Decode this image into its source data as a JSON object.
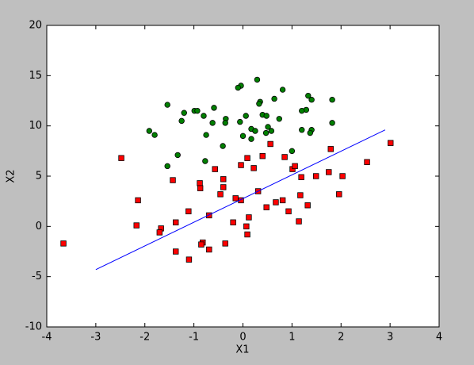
{
  "chart_data": {
    "type": "scatter",
    "xlabel": "X1",
    "ylabel": "X2",
    "xlim": [
      -4,
      4
    ],
    "ylim": [
      -10,
      20
    ],
    "xticks": [
      -4,
      -3,
      -2,
      -1,
      0,
      1,
      2,
      3,
      4
    ],
    "yticks": [
      -10,
      -5,
      0,
      5,
      10,
      15,
      20
    ],
    "series": [
      {
        "marker": "circle",
        "color": "#008000",
        "x": [
          0.29,
          -0.04,
          -0.1,
          0.81,
          1.33,
          1.82,
          1.4,
          0.64,
          0.35,
          0.33,
          -1.54,
          -0.59,
          1.29,
          1.2,
          -0.99,
          -0.93,
          -1.2,
          0.4,
          0.48,
          0.06,
          -0.8,
          -0.35,
          0.74,
          -1.25,
          -0.06,
          -0.36,
          -0.62,
          1.82,
          0.51,
          0.17,
          0.25,
          -1.91,
          1.4,
          1.2,
          1.37,
          0.58,
          0.47,
          -1.8,
          0,
          -0.75,
          0.17,
          -0.41,
          1.0,
          -1.33,
          -0.77,
          -1.54
        ],
        "values": [
          14.6,
          14.0,
          13.8,
          13.6,
          13.0,
          12.6,
          12.6,
          12.7,
          12.4,
          12.2,
          12.1,
          11.8,
          11.6,
          11.5,
          11.5,
          11.5,
          11.3,
          11.1,
          11.0,
          11.0,
          11.0,
          10.7,
          10.7,
          10.5,
          10.4,
          10.3,
          10.3,
          10.3,
          9.9,
          9.7,
          9.5,
          9.5,
          9.6,
          9.6,
          9.3,
          9.5,
          9.3,
          9.1,
          9.0,
          9.1,
          8.7,
          8.0,
          7.5,
          7.1,
          6.5,
          6.0
        ]
      },
      {
        "marker": "square",
        "color": "#ff0000",
        "x": [
          -3.66,
          -2.48,
          -2.14,
          -2.17,
          -1.67,
          -1.7,
          -1.43,
          -1.37,
          -1.37,
          -1.11,
          -1.1,
          -0.88,
          -0.87,
          -0.82,
          -0.85,
          -0.69,
          -0.69,
          -0.57,
          -0.46,
          -0.4,
          -0.4,
          -0.36,
          -0.2,
          -0.15,
          -0.04,
          -0.04,
          0.09,
          0.07,
          0.09,
          0.12,
          0.22,
          0.31,
          0.4,
          0.48,
          0.56,
          0.67,
          0.81,
          0.85,
          0.93,
          1.01,
          1.06,
          1.14,
          1.17,
          1.19,
          1.32,
          1.49,
          1.75,
          1.79,
          1.96,
          2.03,
          2.53,
          3.01
        ],
        "values": [
          -1.7,
          6.8,
          2.6,
          0.1,
          -0.2,
          -0.6,
          4.6,
          0.4,
          -2.5,
          1.5,
          -3.3,
          4.3,
          3.8,
          -1.6,
          -1.8,
          1.1,
          -2.3,
          5.7,
          3.2,
          4.7,
          3.9,
          -1.7,
          0.4,
          2.8,
          6.1,
          2.6,
          6.8,
          0,
          -0.8,
          0.9,
          5.8,
          3.5,
          7.0,
          1.9,
          8.2,
          2.4,
          2.6,
          6.9,
          1.5,
          5.7,
          6.0,
          0.5,
          3.1,
          4.9,
          2.1,
          5.0,
          5.4,
          7.7,
          3.2,
          5.0,
          6.4,
          8.3
        ]
      },
      {
        "marker": "line",
        "color": "#0000ff",
        "x": [
          -3.0,
          2.9
        ],
        "values": [
          -4.3,
          9.6
        ]
      }
    ]
  }
}
